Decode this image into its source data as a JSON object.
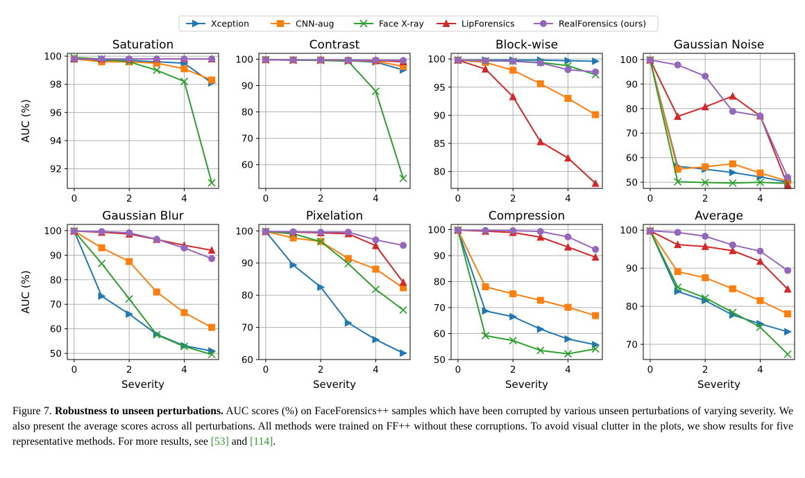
{
  "legend": {
    "items": [
      {
        "label": "Xception",
        "color": "#1f77b4",
        "marker": "triangle-right"
      },
      {
        "label": "CNN-aug",
        "color": "#ff7f0e",
        "marker": "square"
      },
      {
        "label": "Face X-ray",
        "color": "#2ca02c",
        "marker": "x"
      },
      {
        "label": "LipForensics",
        "color": "#d62728",
        "marker": "triangle-up"
      },
      {
        "label": "RealForensics (ours)",
        "color": "#9467bd",
        "marker": "circle"
      }
    ]
  },
  "chart_data": [
    {
      "type": "line",
      "title": "Saturation",
      "xlabel": "",
      "ylabel": "AUC (%)",
      "x": [
        0,
        1,
        2,
        3,
        4,
        5
      ],
      "xlim": [
        -0.25,
        5.25
      ],
      "xticks": [
        "0",
        "2",
        "4"
      ],
      "ylim": [
        90.6,
        100.2
      ],
      "yticks": [
        "92",
        "94",
        "96",
        "98",
        "100"
      ],
      "grid": true,
      "series": [
        {
          "name": "Xception",
          "values": [
            99.8,
            99.7,
            99.7,
            99.6,
            99.5,
            98.1
          ]
        },
        {
          "name": "CNN-aug",
          "values": [
            99.8,
            99.6,
            99.6,
            99.5,
            99.1,
            98.3
          ]
        },
        {
          "name": "Face X-ray",
          "values": [
            99.9,
            99.8,
            99.6,
            99.0,
            98.2,
            91.0
          ]
        },
        {
          "name": "LipForensics",
          "values": [
            99.8,
            99.8,
            99.8,
            99.8,
            99.8,
            99.8
          ]
        },
        {
          "name": "RealForensics (ours)",
          "values": [
            99.8,
            99.8,
            99.8,
            99.8,
            99.8,
            99.8
          ]
        }
      ]
    },
    {
      "type": "line",
      "title": "Contrast",
      "xlabel": "",
      "ylabel": "",
      "x": [
        0,
        1,
        2,
        3,
        4,
        5
      ],
      "xlim": [
        -0.25,
        5.25
      ],
      "xticks": [
        "0",
        "2",
        "4"
      ],
      "ylim": [
        51,
        102.2
      ],
      "yticks": [
        "60",
        "70",
        "80",
        "90",
        "100"
      ],
      "grid": true,
      "series": [
        {
          "name": "Xception",
          "values": [
            99.8,
            99.6,
            99.6,
            99.4,
            98.9,
            95.9
          ]
        },
        {
          "name": "CNN-aug",
          "values": [
            99.8,
            99.7,
            99.7,
            99.5,
            99.3,
            97.2
          ]
        },
        {
          "name": "Face X-ray",
          "values": [
            99.8,
            99.6,
            99.5,
            99.2,
            87.8,
            54.8
          ]
        },
        {
          "name": "LipForensics",
          "values": [
            99.8,
            99.7,
            99.7,
            99.6,
            99.5,
            99.0
          ]
        },
        {
          "name": "RealForensics (ours)",
          "values": [
            99.8,
            99.7,
            99.7,
            99.6,
            99.6,
            99.5
          ]
        }
      ]
    },
    {
      "type": "line",
      "title": "Block-wise",
      "xlabel": "",
      "ylabel": "",
      "x": [
        0,
        1,
        2,
        3,
        4,
        5
      ],
      "xlim": [
        -0.25,
        5.25
      ],
      "xticks": [
        "0",
        "2",
        "4"
      ],
      "ylim": [
        77,
        101
      ],
      "yticks": [
        "80",
        "85",
        "90",
        "95",
        "100"
      ],
      "grid": true,
      "series": [
        {
          "name": "Xception",
          "values": [
            99.8,
            99.8,
            99.8,
            99.8,
            99.7,
            99.6
          ]
        },
        {
          "name": "CNN-aug",
          "values": [
            99.8,
            99.4,
            98.0,
            95.6,
            93.0,
            90.1
          ]
        },
        {
          "name": "Face X-ray",
          "values": [
            99.8,
            99.7,
            99.6,
            99.4,
            98.8,
            97.2
          ]
        },
        {
          "name": "LipForensics",
          "values": [
            99.8,
            98.2,
            93.3,
            85.3,
            82.4,
            77.9
          ]
        },
        {
          "name": "RealForensics (ours)",
          "values": [
            99.8,
            99.7,
            99.6,
            99.3,
            98.1,
            97.7
          ]
        }
      ]
    },
    {
      "type": "line",
      "title": "Gaussian Noise",
      "xlabel": "",
      "ylabel": "",
      "x": [
        0,
        1,
        2,
        3,
        4,
        5
      ],
      "xlim": [
        -0.25,
        5.25
      ],
      "xticks": [
        "0",
        "2",
        "4"
      ],
      "ylim": [
        47.5,
        102.5
      ],
      "yticks": [
        "50",
        "60",
        "70",
        "80",
        "90",
        "100"
      ],
      "grid": true,
      "series": [
        {
          "name": "Xception",
          "values": [
            99.8,
            56.5,
            55.3,
            54.0,
            52.2,
            50.0
          ]
        },
        {
          "name": "CNN-aug",
          "values": [
            99.8,
            55.3,
            56.3,
            57.5,
            53.8,
            50.5
          ]
        },
        {
          "name": "Face X-ray",
          "values": [
            99.8,
            50.2,
            49.9,
            49.7,
            50.0,
            49.5
          ]
        },
        {
          "name": "LipForensics",
          "values": [
            99.8,
            76.8,
            80.7,
            85.1,
            77.0,
            48.7
          ]
        },
        {
          "name": "RealForensics (ours)",
          "values": [
            99.8,
            97.8,
            93.2,
            78.9,
            77.0,
            52.0
          ]
        }
      ]
    },
    {
      "type": "line",
      "title": "Gaussian Blur",
      "xlabel": "Severity",
      "ylabel": "AUC (%)",
      "x": [
        0,
        1,
        2,
        3,
        4,
        5
      ],
      "xlim": [
        -0.25,
        5.25
      ],
      "xticks": [
        "0",
        "2",
        "4"
      ],
      "ylim": [
        47.5,
        102.5
      ],
      "yticks": [
        "50",
        "60",
        "70",
        "80",
        "90",
        "100"
      ],
      "grid": true,
      "series": [
        {
          "name": "Xception",
          "values": [
            99.8,
            73.3,
            66.0,
            57.8,
            53.1,
            51.0
          ]
        },
        {
          "name": "CNN-aug",
          "values": [
            99.8,
            93.0,
            87.4,
            75.0,
            66.6,
            60.6
          ]
        },
        {
          "name": "Face X-ray",
          "values": [
            99.8,
            86.6,
            72.2,
            57.6,
            52.8,
            49.6
          ]
        },
        {
          "name": "LipForensics",
          "values": [
            99.8,
            99.3,
            98.6,
            96.4,
            94.0,
            92.0
          ]
        },
        {
          "name": "RealForensics (ours)",
          "values": [
            99.8,
            99.6,
            99.1,
            96.5,
            92.9,
            88.6
          ]
        }
      ]
    },
    {
      "type": "line",
      "title": "Pixelation",
      "xlabel": "Severity",
      "ylabel": "",
      "x": [
        0,
        1,
        2,
        3,
        4,
        5
      ],
      "xlim": [
        -0.25,
        5.25
      ],
      "xticks": [
        "0",
        "2",
        "4"
      ],
      "ylim": [
        60,
        102
      ],
      "yticks": [
        "60",
        "70",
        "80",
        "90",
        "100"
      ],
      "grid": true,
      "series": [
        {
          "name": "Xception",
          "values": [
            99.8,
            89.4,
            82.5,
            71.4,
            66.2,
            62.0
          ]
        },
        {
          "name": "CNN-aug",
          "values": [
            99.8,
            97.8,
            96.7,
            91.4,
            88.1,
            82.3
          ]
        },
        {
          "name": "Face X-ray",
          "values": [
            99.8,
            99.1,
            96.7,
            89.8,
            81.8,
            75.4
          ]
        },
        {
          "name": "LipForensics",
          "values": [
            99.8,
            99.6,
            99.4,
            99.1,
            95.4,
            84.0
          ]
        },
        {
          "name": "RealForensics (ours)",
          "values": [
            99.8,
            99.7,
            99.6,
            99.6,
            97.2,
            95.5
          ]
        }
      ]
    },
    {
      "type": "line",
      "title": "Compression",
      "xlabel": "Severity",
      "ylabel": "",
      "x": [
        0,
        1,
        2,
        3,
        4,
        5
      ],
      "xlim": [
        -0.25,
        5.25
      ],
      "xticks": [
        "0",
        "2",
        "4"
      ],
      "ylim": [
        50,
        102
      ],
      "yticks": [
        "50",
        "60",
        "70",
        "80",
        "90",
        "100"
      ],
      "grid": true,
      "series": [
        {
          "name": "Xception",
          "values": [
            99.8,
            68.7,
            66.5,
            61.7,
            57.9,
            55.7
          ]
        },
        {
          "name": "CNN-aug",
          "values": [
            99.8,
            78.0,
            75.3,
            72.8,
            70.1,
            66.9
          ]
        },
        {
          "name": "Face X-ray",
          "values": [
            99.8,
            59.2,
            57.3,
            53.5,
            52.2,
            54.1
          ]
        },
        {
          "name": "LipForensics",
          "values": [
            99.8,
            99.4,
            98.9,
            97.1,
            93.3,
            89.4
          ]
        },
        {
          "name": "RealForensics (ours)",
          "values": [
            99.8,
            99.7,
            99.6,
            99.3,
            97.2,
            92.4
          ]
        }
      ]
    },
    {
      "type": "line",
      "title": "Average",
      "xlabel": "Severity",
      "ylabel": "",
      "x": [
        0,
        1,
        2,
        3,
        4,
        5
      ],
      "xlim": [
        -0.25,
        5.25
      ],
      "xticks": [
        "0",
        "2",
        "4"
      ],
      "ylim": [
        66,
        101.5
      ],
      "yticks": [
        "70",
        "80",
        "90",
        "100"
      ],
      "grid": true,
      "series": [
        {
          "name": "Xception",
          "values": [
            99.8,
            83.9,
            81.5,
            77.7,
            75.4,
            73.3
          ]
        },
        {
          "name": "CNN-aug",
          "values": [
            99.8,
            89.1,
            87.5,
            84.6,
            81.5,
            78.0
          ]
        },
        {
          "name": "Face X-ray",
          "values": [
            99.8,
            85.0,
            82.2,
            78.4,
            74.5,
            67.4
          ]
        },
        {
          "name": "LipForensics",
          "values": [
            99.8,
            96.2,
            95.7,
            94.6,
            91.8,
            84.5
          ]
        },
        {
          "name": "RealForensics (ours)",
          "values": [
            99.8,
            99.4,
            98.4,
            96.1,
            94.5,
            89.4
          ]
        }
      ]
    }
  ],
  "caption": {
    "label": "Figure 7.",
    "bold": "Robustness to unseen perturbations.",
    "text1": " AUC scores (%) on FaceForensics++ samples which have been corrupted by various unseen perturbations of varying severity. We also present the average scores across all perturbations. All methods were trained on FF++ without these corruptions. To avoid visual clutter in the plots, we show results for five representative methods. For more results, see ",
    "ref1": "[53]",
    "text2": " and ",
    "ref2": "[114]",
    "text3": "."
  }
}
